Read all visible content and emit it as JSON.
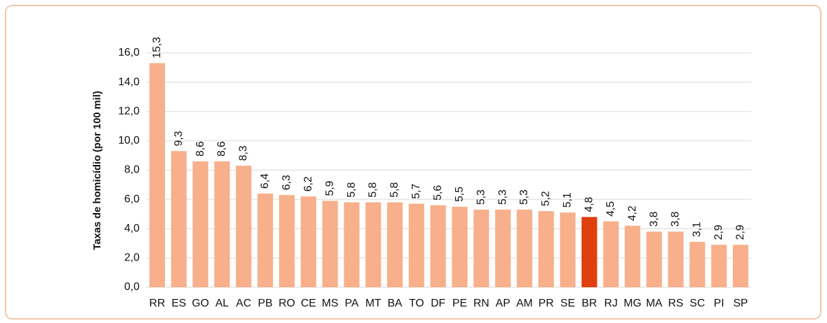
{
  "chart_data": {
    "type": "bar",
    "y_label": "Taxas de homicídio (por 100 mil)",
    "categories": [
      "RR",
      "ES",
      "GO",
      "AL",
      "AC",
      "PB",
      "RO",
      "CE",
      "MS",
      "PA",
      "MT",
      "BA",
      "TO",
      "DF",
      "PE",
      "RN",
      "AP",
      "AM",
      "PR",
      "SE",
      "BR",
      "RJ",
      "MG",
      "MA",
      "RS",
      "SC",
      "PI",
      "SP"
    ],
    "values": [
      15.3,
      9.3,
      8.6,
      8.6,
      8.3,
      6.4,
      6.3,
      6.2,
      5.9,
      5.8,
      5.8,
      5.8,
      5.7,
      5.6,
      5.5,
      5.3,
      5.3,
      5.3,
      5.2,
      5.1,
      4.8,
      4.5,
      4.2,
      3.8,
      3.8,
      3.1,
      2.9,
      2.9
    ],
    "value_labels": [
      "15,3",
      "9,3",
      "8,6",
      "8,6",
      "8,3",
      "6,4",
      "6,3",
      "6,2",
      "5,9",
      "5,8",
      "5,8",
      "5,8",
      "5,7",
      "5,6",
      "5,5",
      "5,3",
      "5,3",
      "5,3",
      "5,2",
      "5,1",
      "4,8",
      "4,5",
      "4,2",
      "3,8",
      "3,8",
      "3,1",
      "2,9",
      "2,9"
    ],
    "colors": [
      "#f7b08b",
      "#f7b08b",
      "#f7b08b",
      "#f7b08b",
      "#f7b08b",
      "#f7b08b",
      "#f7b08b",
      "#f7b08b",
      "#f7b08b",
      "#f7b08b",
      "#f7b08b",
      "#f7b08b",
      "#f7b08b",
      "#f7b08b",
      "#f7b08b",
      "#f7b08b",
      "#f7b08b",
      "#f7b08b",
      "#f7b08b",
      "#f7b08b",
      "#e0400f",
      "#f7b08b",
      "#f7b08b",
      "#f7b08b",
      "#f7b08b",
      "#f7b08b",
      "#f7b08b",
      "#f7b08b"
    ],
    "ylim": [
      0,
      16
    ],
    "yticks": [
      {
        "value": 0,
        "label": "0,0"
      },
      {
        "value": 2,
        "label": "2,0"
      },
      {
        "value": 4,
        "label": "4,0"
      },
      {
        "value": 6,
        "label": "6,0"
      },
      {
        "value": 8,
        "label": "8,0"
      },
      {
        "value": 10,
        "label": "10,0"
      },
      {
        "value": 12,
        "label": "12,0"
      },
      {
        "value": 14,
        "label": "14,0"
      },
      {
        "value": 16,
        "label": "16,0"
      }
    ],
    "grid": true
  }
}
